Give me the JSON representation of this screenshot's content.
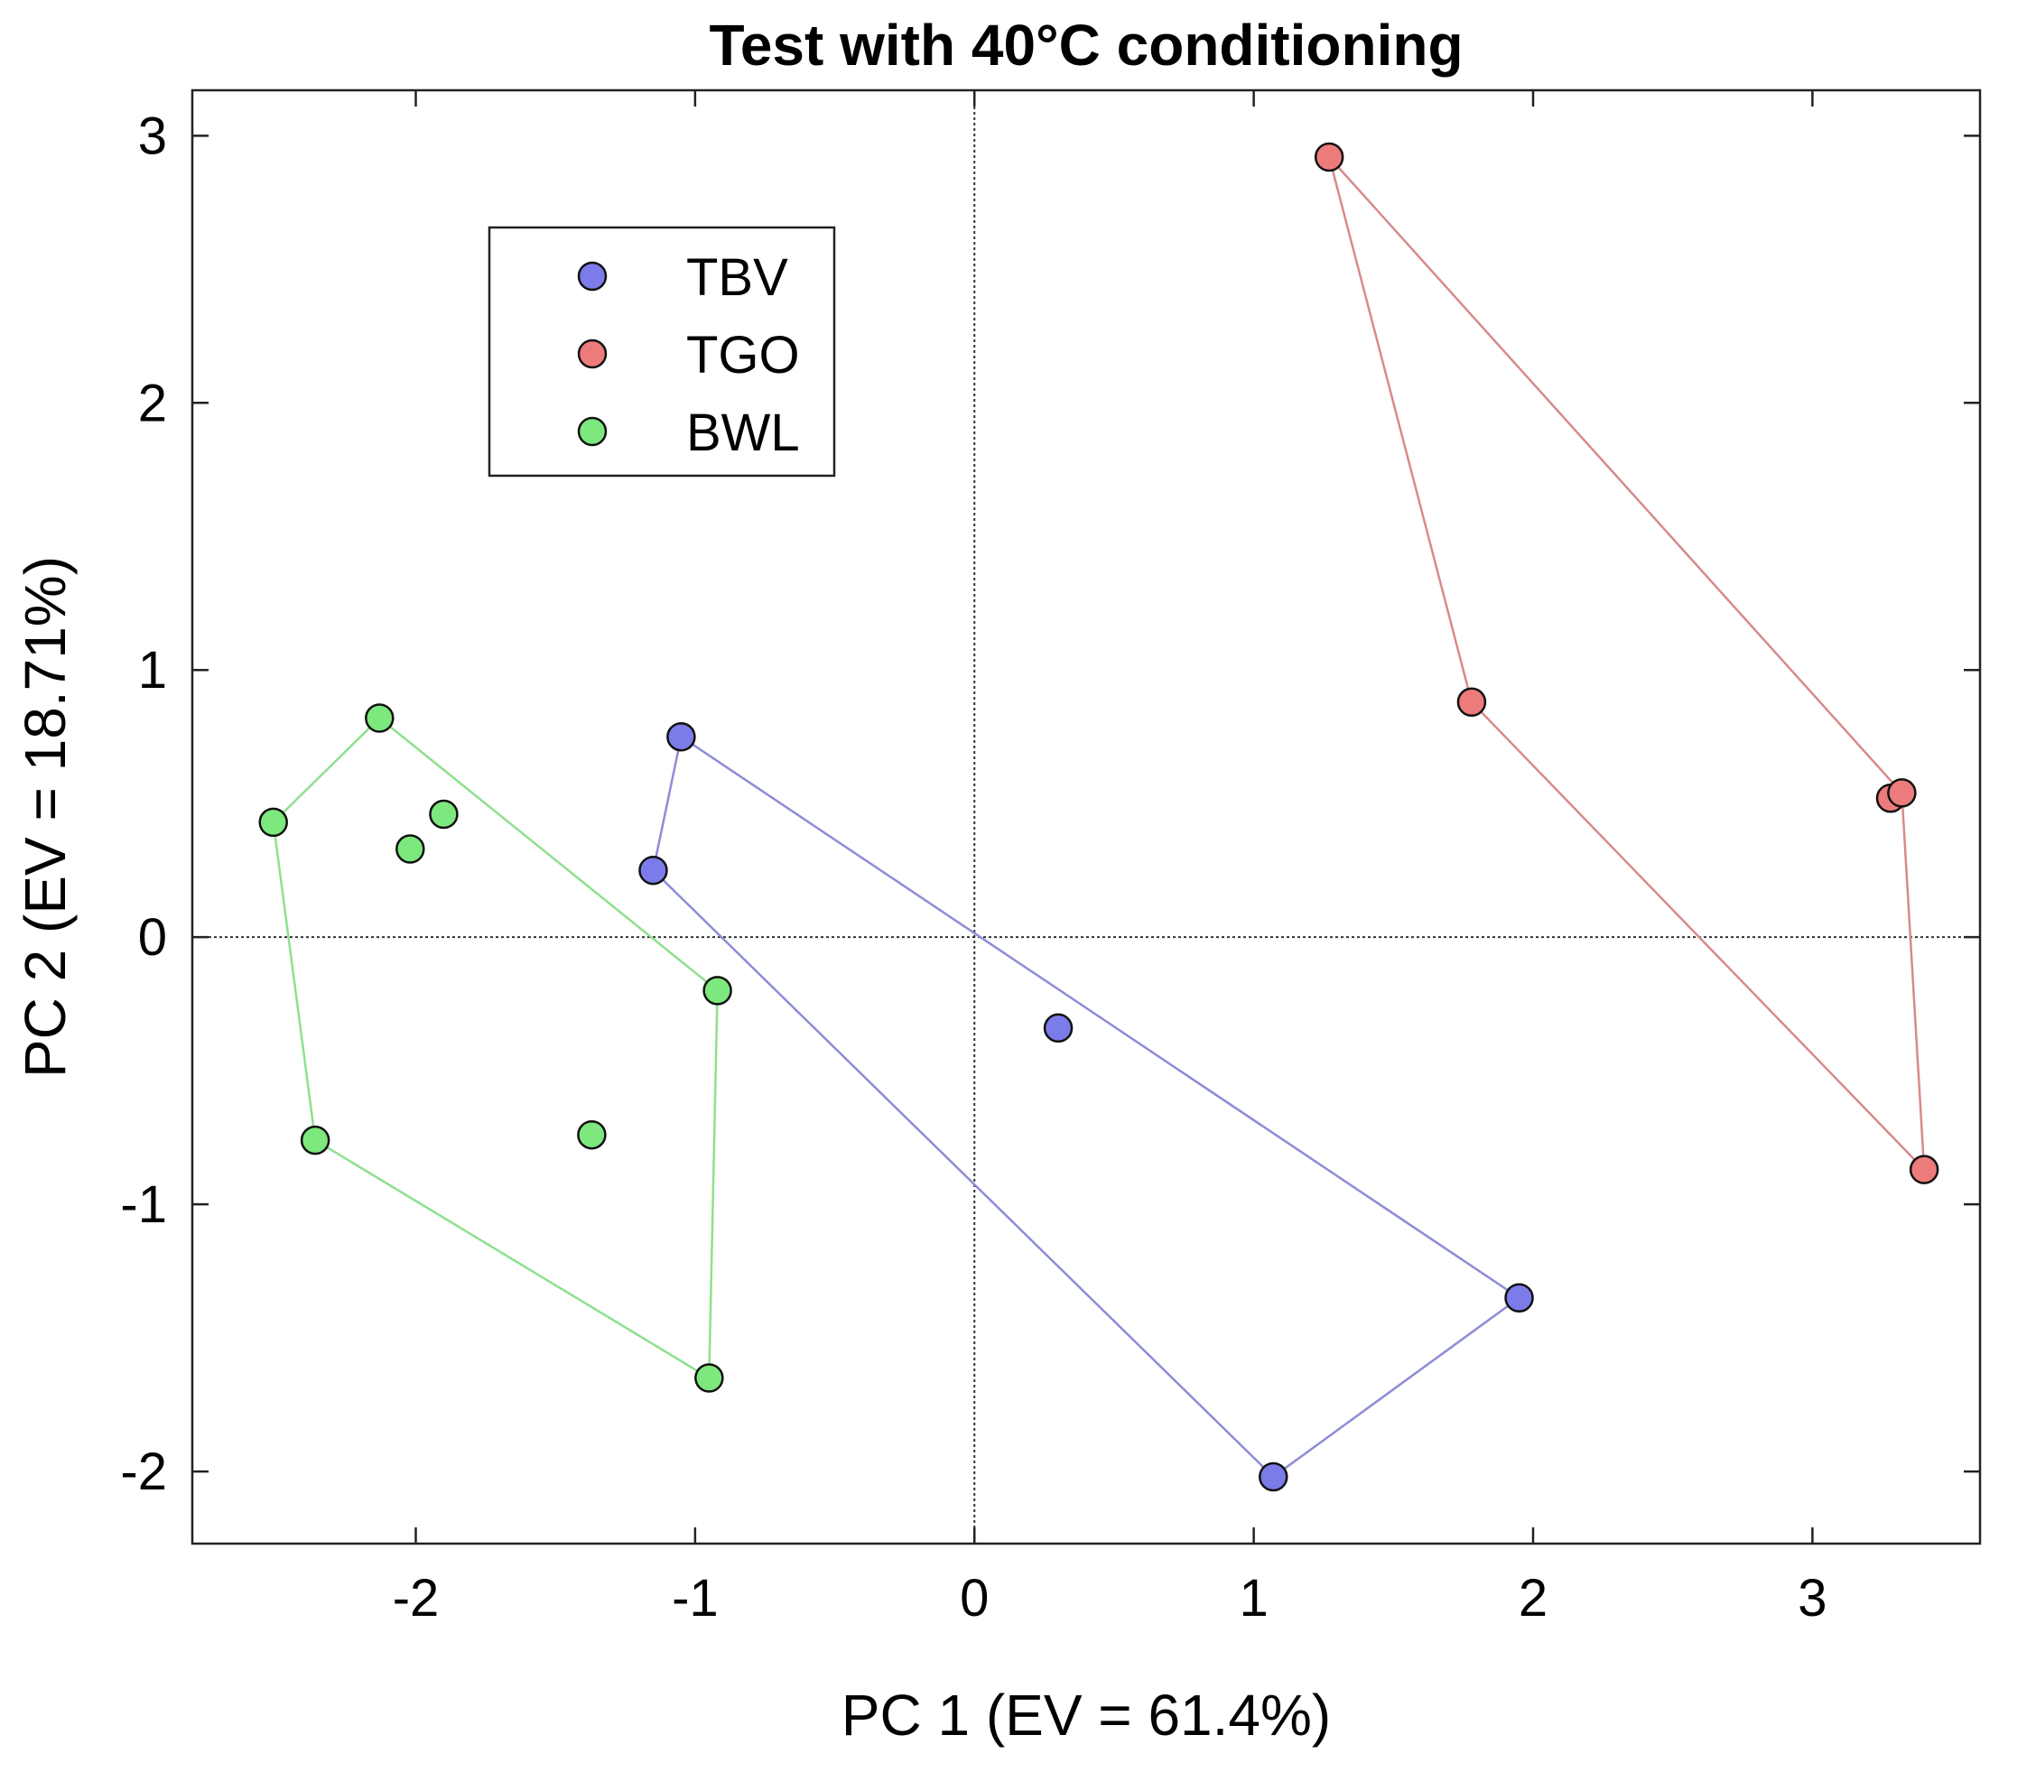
{
  "chart_data": {
    "type": "scatter",
    "title": "Test with 40°C conditioning",
    "xlabel": "PC 1 (EV = 61.4%)",
    "ylabel": "PC 2 (EV = 18.71%)",
    "xlim": [
      -2.8,
      3.6
    ],
    "ylim": [
      -2.27,
      3.17
    ],
    "xticks": [
      -2,
      -1,
      0,
      1,
      2,
      3
    ],
    "yticks": [
      -2,
      -1,
      0,
      1,
      2,
      3
    ],
    "xtick_labels": [
      "-2",
      "-1",
      "0",
      "1",
      "2",
      "3"
    ],
    "ytick_labels": [
      "-2",
      "-1",
      "0",
      "1",
      "2",
      "3"
    ],
    "grid": false,
    "zero_lines": true,
    "legend_position": "upper-left",
    "series": [
      {
        "name": "TBV",
        "color": "#7b7bea",
        "hull_color": "#8c8cd8",
        "points": [
          {
            "x": -1.05,
            "y": 0.75
          },
          {
            "x": -1.15,
            "y": 0.25
          },
          {
            "x": 0.3,
            "y": -0.34
          },
          {
            "x": 1.95,
            "y": -1.35
          },
          {
            "x": 1.07,
            "y": -2.02
          }
        ],
        "hull": [
          0,
          1,
          4,
          3,
          0
        ]
      },
      {
        "name": "TGO",
        "color": "#ee7b7b",
        "hull_color": "#d88a8a",
        "points": [
          {
            "x": 1.27,
            "y": 2.92
          },
          {
            "x": 1.78,
            "y": 0.88
          },
          {
            "x": 3.28,
            "y": 0.52
          },
          {
            "x": 3.32,
            "y": 0.54
          },
          {
            "x": 3.4,
            "y": -0.87
          }
        ],
        "hull": [
          0,
          1,
          4,
          3,
          0
        ]
      },
      {
        "name": "BWL",
        "color": "#7de87d",
        "hull_color": "#8ee08e",
        "points": [
          {
            "x": -2.13,
            "y": 0.82
          },
          {
            "x": -2.51,
            "y": 0.43
          },
          {
            "x": -1.9,
            "y": 0.46
          },
          {
            "x": -2.02,
            "y": 0.33
          },
          {
            "x": -0.92,
            "y": -0.2
          },
          {
            "x": -2.36,
            "y": -0.76
          },
          {
            "x": -1.37,
            "y": -0.74
          },
          {
            "x": -0.95,
            "y": -1.65
          }
        ],
        "hull": [
          0,
          1,
          5,
          7,
          4,
          0
        ]
      }
    ]
  }
}
